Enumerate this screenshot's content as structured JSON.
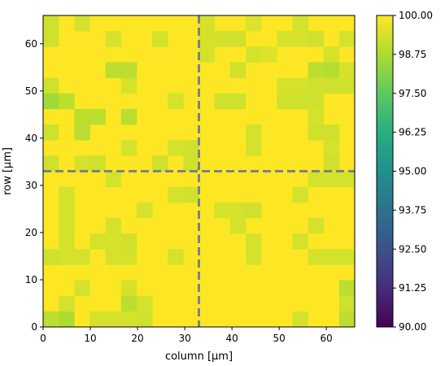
{
  "chart_data": {
    "type": "heatmap",
    "xlabel": "column [µm]",
    "ylabel": "row [µm]",
    "x_ticks": [
      "0",
      "10",
      "20",
      "30",
      "40",
      "50",
      "60"
    ],
    "y_ticks": [
      "0",
      "10",
      "20",
      "30",
      "40",
      "50",
      "60"
    ],
    "xlim": [
      0,
      66
    ],
    "ylim": [
      0,
      66
    ],
    "cell_size_um": 3.3,
    "grid_size": [
      20,
      20
    ],
    "colorbar": {
      "colormap": "viridis",
      "min": 90.0,
      "max": 100.0,
      "ticks": [
        "100.00",
        "98.75",
        "97.50",
        "96.25",
        "95.00",
        "93.75",
        "92.50",
        "91.25",
        "90.00"
      ]
    },
    "divider_lines": {
      "x": 33,
      "y": 33,
      "color": "#808080",
      "style": "dashed"
    },
    "baseline_value": 100.0,
    "cells": [
      {
        "row": 19,
        "col": 0,
        "value": 99.3
      },
      {
        "row": 19,
        "col": 2,
        "value": 99.4
      },
      {
        "row": 19,
        "col": 10,
        "value": 99.4
      },
      {
        "row": 19,
        "col": 13,
        "value": 99.5
      },
      {
        "row": 19,
        "col": 16,
        "value": 99.4
      },
      {
        "row": 18,
        "col": 0,
        "value": 99.3
      },
      {
        "row": 18,
        "col": 4,
        "value": 99.4
      },
      {
        "row": 18,
        "col": 7,
        "value": 99.4
      },
      {
        "row": 18,
        "col": 10,
        "value": 99.4
      },
      {
        "row": 18,
        "col": 11,
        "value": 99.3
      },
      {
        "row": 18,
        "col": 12,
        "value": 99.3
      },
      {
        "row": 18,
        "col": 15,
        "value": 99.4
      },
      {
        "row": 18,
        "col": 16,
        "value": 99.4
      },
      {
        "row": 18,
        "col": 17,
        "value": 99.3
      },
      {
        "row": 18,
        "col": 19,
        "value": 99.4
      },
      {
        "row": 17,
        "col": 10,
        "value": 99.4
      },
      {
        "row": 17,
        "col": 13,
        "value": 99.4
      },
      {
        "row": 17,
        "col": 14,
        "value": 99.5
      },
      {
        "row": 17,
        "col": 18,
        "value": 99.4
      },
      {
        "row": 16,
        "col": 4,
        "value": 99.0
      },
      {
        "row": 16,
        "col": 5,
        "value": 99.0
      },
      {
        "row": 16,
        "col": 12,
        "value": 99.3
      },
      {
        "row": 16,
        "col": 17,
        "value": 99.0
      },
      {
        "row": 16,
        "col": 18,
        "value": 98.9
      },
      {
        "row": 16,
        "col": 19,
        "value": 99.4
      },
      {
        "row": 15,
        "col": 0,
        "value": 99.3
      },
      {
        "row": 15,
        "col": 5,
        "value": 99.4
      },
      {
        "row": 15,
        "col": 15,
        "value": 99.4
      },
      {
        "row": 15,
        "col": 16,
        "value": 99.4
      },
      {
        "row": 15,
        "col": 17,
        "value": 99.3
      },
      {
        "row": 15,
        "col": 18,
        "value": 99.3
      },
      {
        "row": 15,
        "col": 19,
        "value": 99.3
      },
      {
        "row": 14,
        "col": 0,
        "value": 98.6
      },
      {
        "row": 14,
        "col": 1,
        "value": 99.0
      },
      {
        "row": 14,
        "col": 8,
        "value": 99.4
      },
      {
        "row": 14,
        "col": 11,
        "value": 99.3
      },
      {
        "row": 14,
        "col": 12,
        "value": 99.3
      },
      {
        "row": 14,
        "col": 15,
        "value": 99.3
      },
      {
        "row": 14,
        "col": 16,
        "value": 99.3
      },
      {
        "row": 14,
        "col": 17,
        "value": 99.3
      },
      {
        "row": 13,
        "col": 2,
        "value": 99.0
      },
      {
        "row": 13,
        "col": 3,
        "value": 99.0
      },
      {
        "row": 13,
        "col": 5,
        "value": 99.0
      },
      {
        "row": 13,
        "col": 17,
        "value": 99.4
      },
      {
        "row": 12,
        "col": 0,
        "value": 99.3
      },
      {
        "row": 12,
        "col": 2,
        "value": 99.0
      },
      {
        "row": 12,
        "col": 13,
        "value": 99.4
      },
      {
        "row": 12,
        "col": 17,
        "value": 99.3
      },
      {
        "row": 12,
        "col": 18,
        "value": 99.3
      },
      {
        "row": 11,
        "col": 5,
        "value": 99.4
      },
      {
        "row": 11,
        "col": 8,
        "value": 99.4
      },
      {
        "row": 11,
        "col": 9,
        "value": 99.3
      },
      {
        "row": 11,
        "col": 13,
        "value": 99.4
      },
      {
        "row": 11,
        "col": 18,
        "value": 99.4
      },
      {
        "row": 10,
        "col": 0,
        "value": 99.3
      },
      {
        "row": 10,
        "col": 2,
        "value": 99.4
      },
      {
        "row": 10,
        "col": 3,
        "value": 99.3
      },
      {
        "row": 10,
        "col": 7,
        "value": 99.3
      },
      {
        "row": 10,
        "col": 9,
        "value": 99.3
      },
      {
        "row": 10,
        "col": 18,
        "value": 99.3
      },
      {
        "row": 9,
        "col": 4,
        "value": 99.4
      },
      {
        "row": 9,
        "col": 17,
        "value": 99.4
      },
      {
        "row": 9,
        "col": 18,
        "value": 99.4
      },
      {
        "row": 9,
        "col": 19,
        "value": 99.4
      },
      {
        "row": 8,
        "col": 1,
        "value": 99.4
      },
      {
        "row": 8,
        "col": 8,
        "value": 99.4
      },
      {
        "row": 8,
        "col": 9,
        "value": 99.3
      },
      {
        "row": 8,
        "col": 16,
        "value": 99.4
      },
      {
        "row": 7,
        "col": 1,
        "value": 99.4
      },
      {
        "row": 7,
        "col": 6,
        "value": 99.4
      },
      {
        "row": 7,
        "col": 11,
        "value": 99.4
      },
      {
        "row": 7,
        "col": 12,
        "value": 99.4
      },
      {
        "row": 7,
        "col": 13,
        "value": 99.3
      },
      {
        "row": 6,
        "col": 1,
        "value": 99.4
      },
      {
        "row": 6,
        "col": 4,
        "value": 99.4
      },
      {
        "row": 6,
        "col": 12,
        "value": 99.4
      },
      {
        "row": 6,
        "col": 17,
        "value": 99.4
      },
      {
        "row": 5,
        "col": 1,
        "value": 99.4
      },
      {
        "row": 5,
        "col": 3,
        "value": 99.4
      },
      {
        "row": 5,
        "col": 4,
        "value": 99.4
      },
      {
        "row": 5,
        "col": 5,
        "value": 99.3
      },
      {
        "row": 5,
        "col": 13,
        "value": 99.4
      },
      {
        "row": 5,
        "col": 16,
        "value": 99.4
      },
      {
        "row": 4,
        "col": 0,
        "value": 99.3
      },
      {
        "row": 4,
        "col": 1,
        "value": 99.4
      },
      {
        "row": 4,
        "col": 2,
        "value": 99.4
      },
      {
        "row": 4,
        "col": 4,
        "value": 99.4
      },
      {
        "row": 4,
        "col": 5,
        "value": 99.4
      },
      {
        "row": 4,
        "col": 8,
        "value": 99.4
      },
      {
        "row": 4,
        "col": 13,
        "value": 99.4
      },
      {
        "row": 4,
        "col": 17,
        "value": 99.4
      },
      {
        "row": 4,
        "col": 18,
        "value": 99.4
      },
      {
        "row": 4,
        "col": 19,
        "value": 99.4
      },
      {
        "row": 2,
        "col": 2,
        "value": 99.4
      },
      {
        "row": 2,
        "col": 5,
        "value": 99.4
      },
      {
        "row": 2,
        "col": 19,
        "value": 99.0
      },
      {
        "row": 1,
        "col": 1,
        "value": 99.4
      },
      {
        "row": 1,
        "col": 5,
        "value": 99.0
      },
      {
        "row": 1,
        "col": 6,
        "value": 99.4
      },
      {
        "row": 1,
        "col": 19,
        "value": 99.3
      },
      {
        "row": 0,
        "col": 0,
        "value": 99.0
      },
      {
        "row": 0,
        "col": 1,
        "value": 98.8
      },
      {
        "row": 0,
        "col": 3,
        "value": 99.4
      },
      {
        "row": 0,
        "col": 4,
        "value": 99.4
      },
      {
        "row": 0,
        "col": 5,
        "value": 99.4
      },
      {
        "row": 0,
        "col": 6,
        "value": 99.3
      },
      {
        "row": 0,
        "col": 16,
        "value": 99.4
      },
      {
        "row": 0,
        "col": 19,
        "value": 99.0
      }
    ]
  }
}
